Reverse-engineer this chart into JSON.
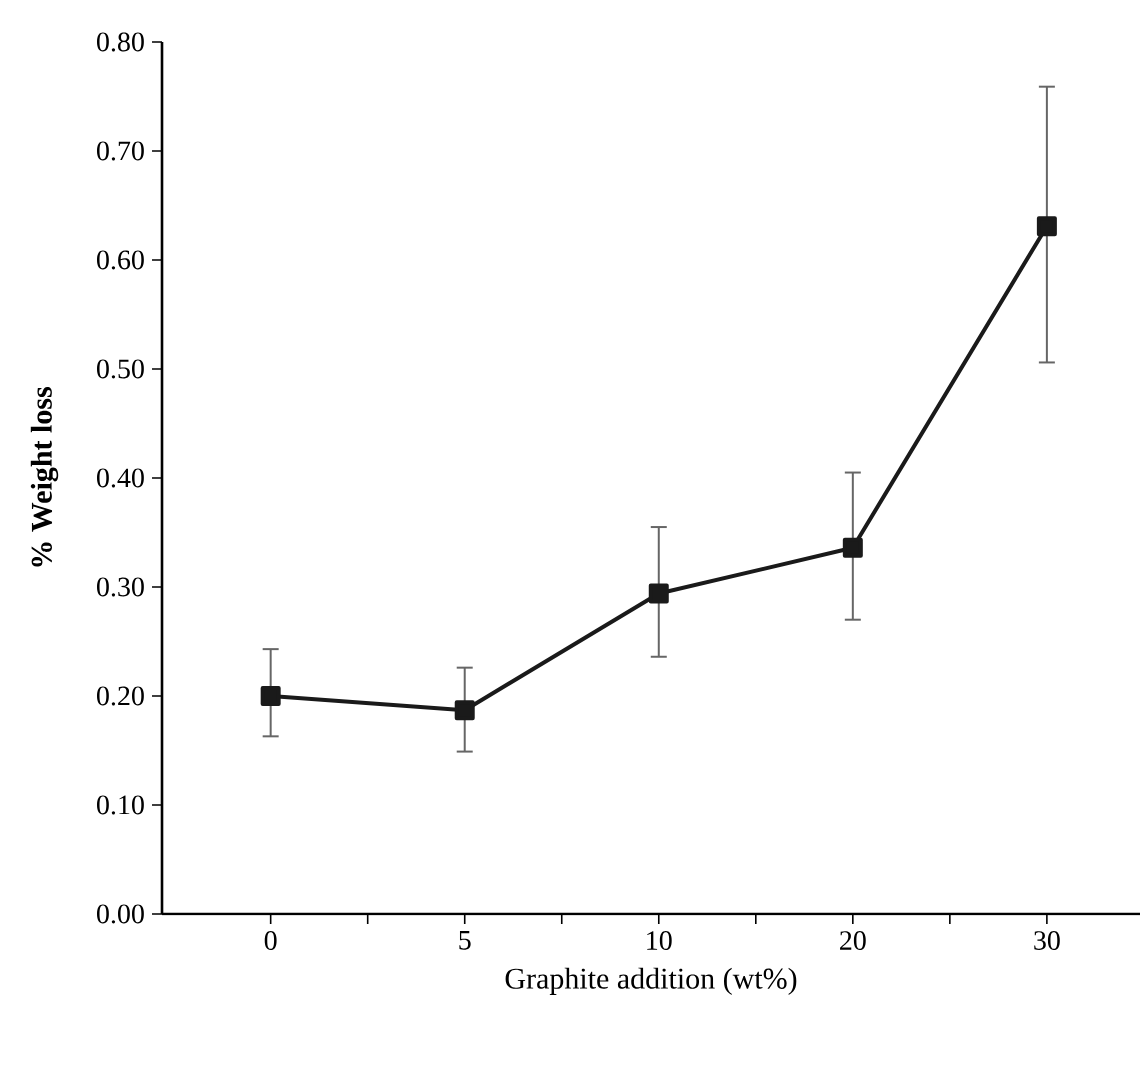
{
  "chart_data": {
    "type": "line",
    "xlabel": "Graphite addition (wt%)",
    "ylabel": "% Weight loss",
    "categories": [
      "0",
      "5",
      "10",
      "20",
      "30"
    ],
    "series": [
      {
        "color": "#1a1a1a",
        "values": [
          0.2,
          0.187,
          0.294,
          0.336,
          0.631
        ],
        "errors": [
          [
            0.163,
            0.243
          ],
          [
            0.149,
            0.226
          ],
          [
            0.236,
            0.355
          ],
          [
            0.27,
            0.405
          ],
          [
            0.506,
            0.759
          ]
        ]
      }
    ],
    "ylim": [
      0,
      0.8
    ],
    "yticks": [
      {
        "value": 0,
        "label": "0.00"
      },
      {
        "value": 0.1,
        "label": "0.10"
      },
      {
        "value": 0.2,
        "label": "0.20"
      },
      {
        "value": 0.3,
        "label": "0.30"
      },
      {
        "value": 0.4,
        "label": "0.40"
      },
      {
        "value": 0.5,
        "label": "0.50"
      },
      {
        "value": 0.6,
        "label": "0.60"
      },
      {
        "value": 0.7,
        "label": "0.70"
      },
      {
        "value": 0.8,
        "label": "0.80"
      }
    ],
    "marker": "square",
    "line_style": "solid"
  }
}
